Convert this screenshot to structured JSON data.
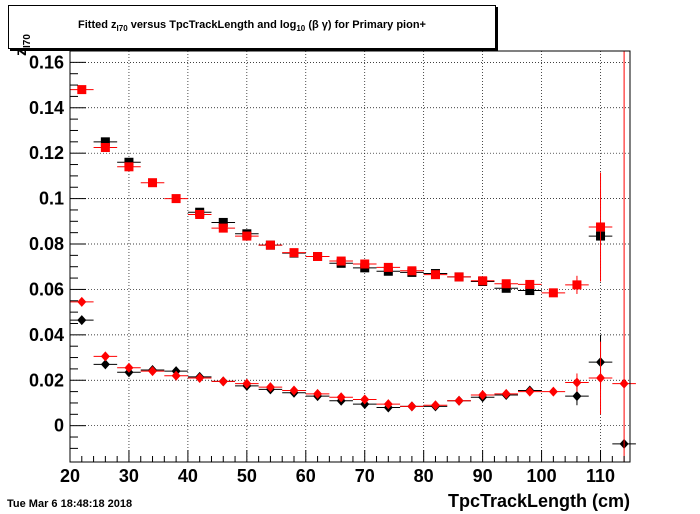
{
  "chart_data": {
    "type": "scatter",
    "title_parts": {
      "pre": "Fitted  z",
      "pre_sub": "I70",
      "mid": "  versus TpcTrackLength and log",
      "mid_sub": "10",
      "post": " (β γ) for Primary pion+"
    },
    "xlabel": "TpcTrackLength (cm)",
    "ylabel_main": "z",
    "ylabel_sub": "I70",
    "xlim": [
      20,
      115
    ],
    "ylim": [
      -0.016,
      0.165
    ],
    "xticks": [
      20,
      30,
      40,
      50,
      60,
      70,
      80,
      90,
      100,
      110
    ],
    "yticks": [
      0,
      0.02,
      0.04,
      0.06,
      0.08,
      0.1,
      0.12,
      0.14,
      0.16
    ],
    "ytick_labels": [
      "0",
      "0.02",
      "0.04",
      "0.06",
      "0.08",
      "0.1",
      "0.12",
      "0.14",
      "0.16"
    ],
    "grid": true,
    "bin_halfwidth": 2,
    "colors": {
      "black": "#000000",
      "red": "#ff0000"
    },
    "series": [
      {
        "marker": "square",
        "color": "#000000",
        "x": [
          26,
          30,
          42,
          46,
          50,
          54,
          58,
          62,
          66,
          70,
          74,
          78,
          82,
          86,
          90,
          94,
          98,
          110
        ],
        "y": [
          0.125,
          0.116,
          0.094,
          0.0895,
          0.0845,
          0.0795,
          0.076,
          0.0745,
          0.0715,
          0.0695,
          0.068,
          0.0675,
          0.067,
          0.0655,
          0.0635,
          0.0605,
          0.0595,
          0.0835
        ]
      },
      {
        "marker": "square",
        "color": "#ff0000",
        "x": [
          22,
          26,
          30,
          34,
          38,
          42,
          46,
          50,
          54,
          58,
          62,
          66,
          70,
          74,
          78,
          82,
          86,
          90,
          94,
          98,
          102,
          106,
          110
        ],
        "y": [
          0.148,
          0.1225,
          0.114,
          0.107,
          0.1,
          0.093,
          0.087,
          0.0835,
          0.0795,
          0.0762,
          0.0745,
          0.0725,
          0.0712,
          0.0697,
          0.0682,
          0.0665,
          0.0655,
          0.0638,
          0.0625,
          0.0622,
          0.0585,
          0.062,
          0.0875
        ],
        "yerr": [
          0,
          0,
          0,
          0,
          0,
          0,
          0,
          0,
          0,
          0,
          0,
          0,
          0,
          0,
          0,
          0,
          0,
          0,
          0,
          0,
          0,
          0.004,
          0.024
        ]
      },
      {
        "marker": "diamond",
        "color": "#000000",
        "x": [
          22,
          26,
          30,
          34,
          38,
          42,
          46,
          50,
          54,
          58,
          62,
          66,
          70,
          74,
          78,
          82,
          86,
          90,
          94,
          98,
          106,
          110,
          114
        ],
        "y": [
          0.0465,
          0.027,
          0.0235,
          0.0245,
          0.024,
          0.0215,
          0.0195,
          0.0175,
          0.016,
          0.0145,
          0.013,
          0.011,
          0.0095,
          0.008,
          0.0085,
          0.0085,
          0.011,
          0.0125,
          0.0135,
          0.0155,
          0.013,
          0.028,
          -0.008
        ],
        "yerr": [
          0,
          0,
          0,
          0,
          0,
          0,
          0,
          0,
          0,
          0,
          0,
          0,
          0,
          0,
          0,
          0,
          0,
          0,
          0,
          0,
          0.004,
          0.012,
          0
        ]
      },
      {
        "marker": "diamond",
        "color": "#ff0000",
        "x": [
          22,
          26,
          30,
          34,
          38,
          42,
          46,
          50,
          54,
          58,
          62,
          66,
          70,
          74,
          78,
          82,
          86,
          90,
          94,
          98,
          102,
          106,
          110,
          114
        ],
        "y": [
          0.0545,
          0.0305,
          0.0255,
          0.024,
          0.022,
          0.021,
          0.0195,
          0.0185,
          0.017,
          0.0155,
          0.014,
          0.0125,
          0.0115,
          0.0095,
          0.0085,
          0.009,
          0.011,
          0.0135,
          0.014,
          0.015,
          0.015,
          0.019,
          0.021,
          0.0185
        ],
        "yerr": [
          0,
          0,
          0,
          0,
          0,
          0,
          0,
          0,
          0,
          0,
          0,
          0,
          0,
          0,
          0,
          0,
          0,
          0,
          0,
          0,
          0,
          0.004,
          0.016,
          0.2
        ]
      }
    ]
  },
  "footer": {
    "timestamp": "Tue Mar  6 18:48:18 2018"
  }
}
